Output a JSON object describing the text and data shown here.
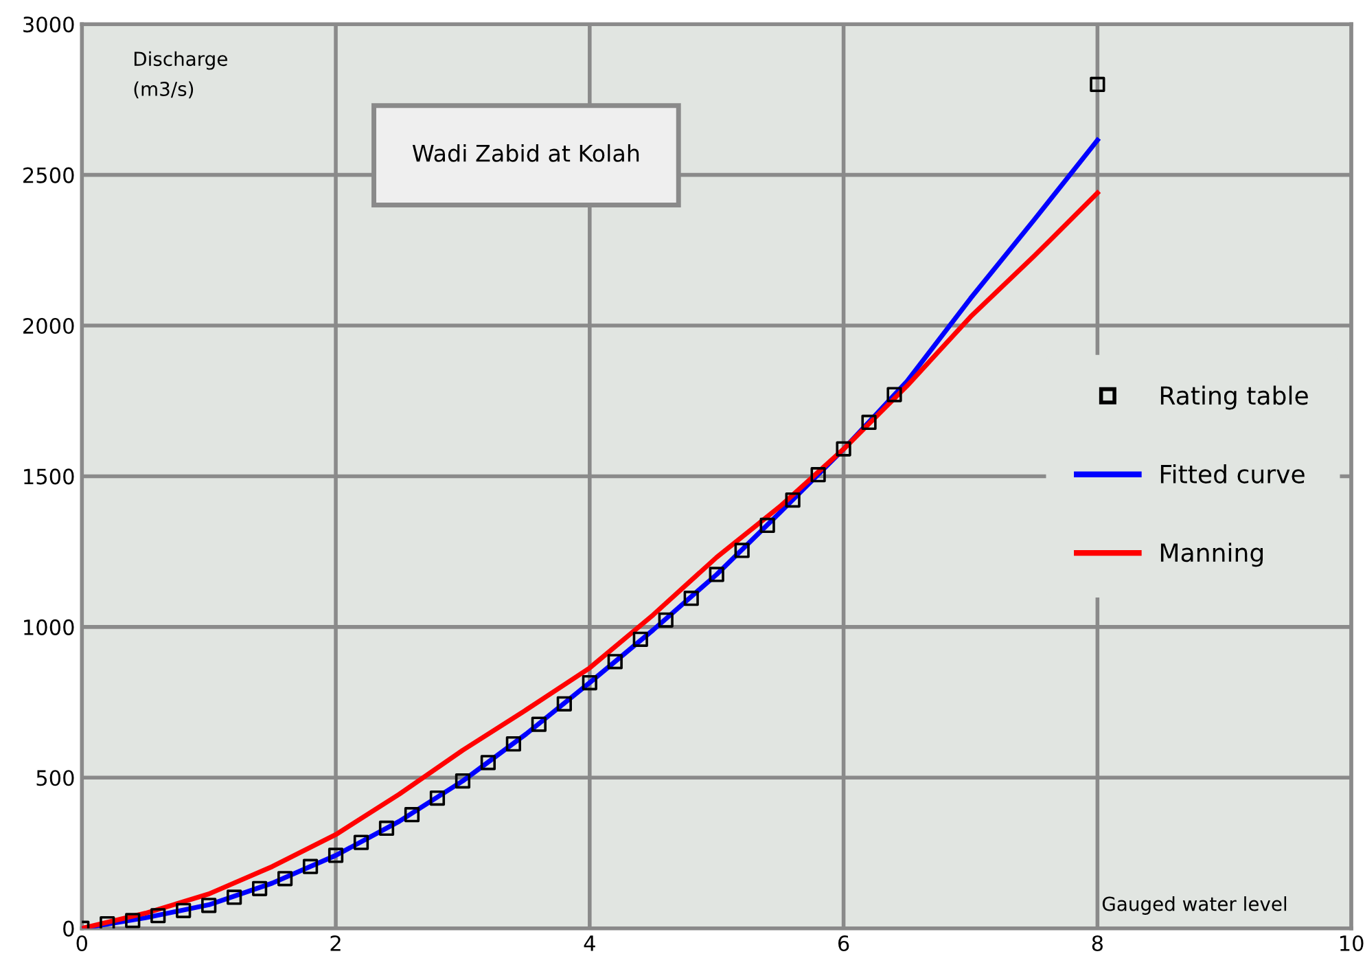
{
  "chart_data": {
    "type": "line",
    "title": "Wadi Zabid at Kolah",
    "xlabel": "Gauged water level",
    "ylabel": "Discharge\n(m3/s)",
    "xlim": [
      0,
      10
    ],
    "ylim": [
      0,
      3000
    ],
    "xticks": [
      0,
      2,
      4,
      6,
      8,
      10
    ],
    "yticks": [
      0,
      500,
      1000,
      1500,
      2000,
      2500,
      3000
    ],
    "grid": true,
    "legend": "right",
    "series": [
      {
        "name": "Rating table",
        "type": "scatter",
        "marker": "square",
        "color": "#000000",
        "x": [
          0,
          0.2,
          0.4,
          0.6,
          0.8,
          1.0,
          1.2,
          1.4,
          1.6,
          1.8,
          2.0,
          2.2,
          2.4,
          2.6,
          2.8,
          3.0,
          3.2,
          3.4,
          3.6,
          3.8,
          4.0,
          4.2,
          4.4,
          4.6,
          4.8,
          5.0,
          5.2,
          5.4,
          5.6,
          5.8,
          6.0,
          6.2,
          6.4,
          8.0
        ],
        "values": [
          0,
          15,
          26,
          42,
          59,
          76,
          103,
          132,
          165,
          205,
          242,
          285,
          332,
          377,
          432,
          489,
          550,
          612,
          677,
          745,
          815,
          885,
          959,
          1023,
          1095,
          1174,
          1254,
          1337,
          1421,
          1505,
          1591,
          1679,
          1771,
          2800
        ]
      },
      {
        "name": "Fitted curve",
        "color": "#0000ff",
        "x": [
          0,
          0.5,
          1,
          1.5,
          2,
          2.5,
          3,
          3.5,
          4,
          4.5,
          5,
          5.5,
          6,
          6.5,
          7,
          7.5,
          8
        ],
        "values": [
          0,
          35,
          78,
          150,
          242,
          355,
          489,
          645,
          815,
          990,
          1174,
          1380,
          1590,
          1815,
          2090,
          2350,
          2615
        ]
      },
      {
        "name": "Manning",
        "color": "#ff0000",
        "x": [
          0,
          0.5,
          1,
          1.5,
          2,
          2.5,
          3,
          3.5,
          4,
          4.5,
          5,
          5.5,
          6,
          6.5,
          7,
          7.5,
          8
        ],
        "values": [
          0,
          50,
          114,
          205,
          311,
          445,
          591,
          725,
          864,
          1040,
          1231,
          1400,
          1590,
          1800,
          2029,
          2230,
          2440
        ]
      }
    ]
  }
}
